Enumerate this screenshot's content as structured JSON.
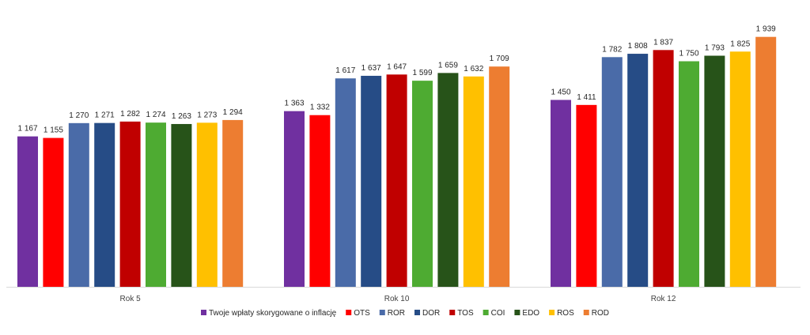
{
  "chart_data": {
    "type": "bar",
    "categories": [
      "Rok 5",
      "Rok 10",
      "Rok 12"
    ],
    "series": [
      {
        "name": "Twoje wpłaty skorygowane o inflację",
        "color": "#7030A0",
        "values": [
          1167,
          1363,
          1450
        ],
        "labels": [
          "1 167",
          "1 363",
          "1 450"
        ]
      },
      {
        "name": "OTS",
        "color": "#FF0000",
        "values": [
          1155,
          1332,
          1411
        ],
        "labels": [
          "1 155",
          "1 332",
          "1 411"
        ]
      },
      {
        "name": "ROR",
        "color": "#4A6BA8",
        "values": [
          1270,
          1617,
          1782
        ],
        "labels": [
          "1 270",
          "1 617",
          "1 782"
        ]
      },
      {
        "name": "DOR",
        "color": "#264C86",
        "values": [
          1271,
          1637,
          1808
        ],
        "labels": [
          "1 271",
          "1 637",
          "1 808"
        ]
      },
      {
        "name": "TOS",
        "color": "#C00000",
        "values": [
          1282,
          1647,
          1837
        ],
        "labels": [
          "1 282",
          "1 647",
          "1 837"
        ]
      },
      {
        "name": "COI",
        "color": "#4EAB32",
        "values": [
          1274,
          1599,
          1750
        ],
        "labels": [
          "1 274",
          "1 599",
          "1 750"
        ]
      },
      {
        "name": "EDO",
        "color": "#275319",
        "values": [
          1263,
          1659,
          1793
        ],
        "labels": [
          "1 263",
          "1 659",
          "1 793"
        ]
      },
      {
        "name": "ROS",
        "color": "#FFC000",
        "values": [
          1273,
          1632,
          1825
        ],
        "labels": [
          "1 273",
          "1 632",
          "1 825"
        ]
      },
      {
        "name": "ROD",
        "color": "#ED7D31",
        "values": [
          1294,
          1709,
          1939
        ],
        "labels": [
          "1 294",
          "1 709",
          "1 939"
        ]
      }
    ],
    "ylim": [
      0,
      1980
    ],
    "grid": false,
    "legend_position": "bottom",
    "title": "",
    "xlabel": "",
    "ylabel": ""
  }
}
